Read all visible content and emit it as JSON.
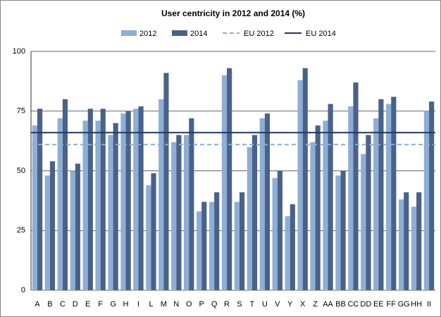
{
  "chart_data": {
    "type": "bar",
    "title": "User centricity in 2012 and 2014 (%)",
    "categories": [
      "A",
      "B",
      "C",
      "D",
      "E",
      "F",
      "G",
      "H",
      "I",
      "L",
      "M",
      "N",
      "O",
      "P",
      "Q",
      "R",
      "S",
      "T",
      "U",
      "V",
      "Y",
      "X",
      "Z",
      "AA",
      "BB",
      "CC",
      "DD",
      "EE",
      "FF",
      "GG",
      "HH",
      "II"
    ],
    "series": [
      {
        "name": "2012",
        "color": "#8eaed6",
        "values": [
          69,
          48,
          72,
          50,
          71,
          71,
          65,
          74,
          76,
          44,
          80,
          62,
          65,
          33,
          37,
          90,
          37,
          60,
          72,
          47,
          31,
          88,
          62,
          71,
          48,
          77,
          57,
          72,
          78,
          38,
          35,
          75
        ]
      },
      {
        "name": "2014",
        "color": "#4a6288",
        "values": [
          76,
          54,
          80,
          53,
          76,
          76,
          70,
          75,
          77,
          49,
          91,
          65,
          72,
          37,
          41,
          93,
          41,
          65,
          74,
          50,
          36,
          93,
          69,
          78,
          50,
          87,
          65,
          80,
          81,
          41,
          41,
          79
        ]
      }
    ],
    "reference_lines": [
      {
        "name": "EU 2012",
        "value": 61,
        "color": "#8eaed6",
        "dashed": true
      },
      {
        "name": "EU 2014",
        "value": 66,
        "color": "#1f3864",
        "dashed": false
      }
    ],
    "ylim": [
      0,
      100
    ],
    "yticks": [
      0,
      25,
      50,
      75,
      100
    ],
    "grid": true
  }
}
